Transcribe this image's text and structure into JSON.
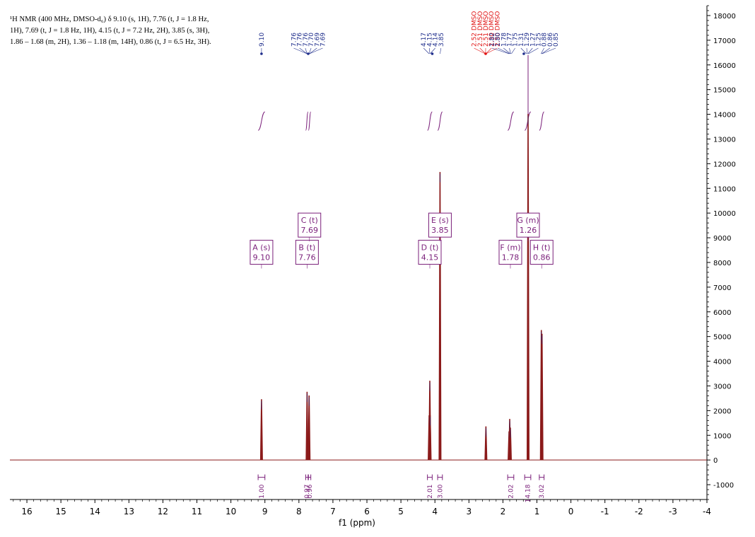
{
  "description": {
    "lines": [
      "¹H NMR (400 MHz, DMSO-d₆) δ 9.10 (s, 1H), 7.76 (t, J = 1.8 Hz,",
      "1H), 7.69 (t, J = 1.8 Hz, 1H), 4.15 (t, J = 7.2 Hz, 2H), 3.85 (s, 3H),",
      "1.86 – 1.68 (m, 2H), 1.36 – 1.18 (m, 14H), 0.86 (t, J = 6.5 Hz, 3H)."
    ]
  },
  "chart_data": {
    "type": "line",
    "title": "",
    "xlabel": "f1 (ppm)",
    "ylabel": "",
    "x_reversed": true,
    "xlim": [
      16.5,
      -4
    ],
    "ylim": [
      -1600,
      18400
    ],
    "x_ticks": [
      16,
      15,
      14,
      13,
      12,
      11,
      10,
      9,
      8,
      7,
      6,
      5,
      4,
      3,
      2,
      1,
      0,
      -1,
      -2,
      -3,
      -4
    ],
    "y_ticks": [
      -1000,
      0,
      1000,
      2000,
      3000,
      4000,
      5000,
      6000,
      7000,
      8000,
      9000,
      10000,
      11000,
      12000,
      13000,
      14000,
      15000,
      16000,
      17000,
      18000
    ],
    "colors": {
      "spectrum": "#8b1a1a",
      "annotation": "#7a1f7a",
      "peak_label": "#1f2e8c",
      "solvent_label": "#e01010"
    },
    "peaks": [
      {
        "ppm": 9.1,
        "height": 2450
      },
      {
        "ppm": 7.76,
        "height": 2750
      },
      {
        "ppm": 7.7,
        "height": 2600
      },
      {
        "ppm": 4.17,
        "height": 1800
      },
      {
        "ppm": 4.15,
        "height": 3200
      },
      {
        "ppm": 4.14,
        "height": 1800
      },
      {
        "ppm": 3.85,
        "height": 11650
      },
      {
        "ppm": 2.5,
        "height": 1350
      },
      {
        "ppm": 1.82,
        "height": 1150
      },
      {
        "ppm": 1.8,
        "height": 1650
      },
      {
        "ppm": 1.78,
        "height": 1300
      },
      {
        "ppm": 1.26,
        "height": 14000
      },
      {
        "ppm": 0.87,
        "height": 5250
      },
      {
        "ppm": 0.85,
        "height": 5100
      }
    ],
    "peak_labels": [
      {
        "text": "9.10",
        "ppm": 9.1,
        "solvent": false
      },
      {
        "text": "7.76",
        "ppm": 7.76,
        "solvent": false
      },
      {
        "text": "7.76",
        "ppm": 7.76,
        "solvent": false
      },
      {
        "text": "7.76",
        "ppm": 7.76,
        "solvent": false
      },
      {
        "text": "7.70",
        "ppm": 7.7,
        "solvent": false
      },
      {
        "text": "7.69",
        "ppm": 7.69,
        "solvent": false
      },
      {
        "text": "7.69",
        "ppm": 7.69,
        "solvent": false
      },
      {
        "text": "4.17",
        "ppm": 4.17,
        "solvent": false
      },
      {
        "text": "4.15",
        "ppm": 4.15,
        "solvent": false
      },
      {
        "text": "4.14",
        "ppm": 4.14,
        "solvent": false
      },
      {
        "text": "3.85",
        "ppm": 3.85,
        "solvent": false
      },
      {
        "text": "2.52 DMSO",
        "ppm": 2.52,
        "solvent": true
      },
      {
        "text": "2.51 DMSO",
        "ppm": 2.51,
        "solvent": true
      },
      {
        "text": "2.51 DMSO",
        "ppm": 2.51,
        "solvent": true
      },
      {
        "text": "2.50 DMSO",
        "ppm": 2.5,
        "solvent": true
      },
      {
        "text": "2.50 DMSO",
        "ppm": 2.5,
        "solvent": true
      },
      {
        "text": "1.82",
        "ppm": 1.82,
        "solvent": false
      },
      {
        "text": "1.80",
        "ppm": 1.8,
        "solvent": false
      },
      {
        "text": "1.78",
        "ppm": 1.78,
        "solvent": false
      },
      {
        "text": "1.77",
        "ppm": 1.77,
        "solvent": false
      },
      {
        "text": "1.75",
        "ppm": 1.75,
        "solvent": false
      },
      {
        "text": "1.31",
        "ppm": 1.31,
        "solvent": false
      },
      {
        "text": "1.29",
        "ppm": 1.29,
        "solvent": false
      },
      {
        "text": "1.27",
        "ppm": 1.27,
        "solvent": false
      },
      {
        "text": "1.25",
        "ppm": 1.25,
        "solvent": false
      },
      {
        "text": "0.88",
        "ppm": 0.88,
        "solvent": false
      },
      {
        "text": "0.86",
        "ppm": 0.86,
        "solvent": false
      },
      {
        "text": "0.85",
        "ppm": 0.85,
        "solvent": false
      }
    ],
    "multiplets": [
      {
        "letter": "A",
        "type": "s",
        "shift": "9.10",
        "ppm": 9.1,
        "tier": "low"
      },
      {
        "letter": "B",
        "type": "t",
        "shift": "7.76",
        "ppm": 7.76,
        "tier": "low"
      },
      {
        "letter": "C",
        "type": "t",
        "shift": "7.69",
        "ppm": 7.69,
        "tier": "high"
      },
      {
        "letter": "D",
        "type": "t",
        "shift": "4.15",
        "ppm": 4.15,
        "tier": "low"
      },
      {
        "letter": "E",
        "type": "s",
        "shift": "3.85",
        "ppm": 3.85,
        "tier": "high"
      },
      {
        "letter": "F",
        "type": "m",
        "shift": "1.78",
        "ppm": 1.78,
        "tier": "low"
      },
      {
        "letter": "G",
        "type": "m",
        "shift": "1.26",
        "ppm": 1.26,
        "tier": "high"
      },
      {
        "letter": "H",
        "type": "t",
        "shift": "0.86",
        "ppm": 0.86,
        "tier": "low"
      }
    ],
    "integrals": [
      {
        "value": "1.00",
        "from": 9.2,
        "to": 9.0
      },
      {
        "value": "0.97",
        "from": 7.8,
        "to": 7.73
      },
      {
        "value": "0.96",
        "from": 7.72,
        "to": 7.65
      },
      {
        "value": "2.01",
        "from": 4.22,
        "to": 4.08
      },
      {
        "value": "3.00",
        "from": 3.92,
        "to": 3.78
      },
      {
        "value": "2.02",
        "from": 1.86,
        "to": 1.68
      },
      {
        "value": "14.18",
        "from": 1.36,
        "to": 1.18
      },
      {
        "value": "3.02",
        "from": 0.93,
        "to": 0.79
      }
    ]
  }
}
